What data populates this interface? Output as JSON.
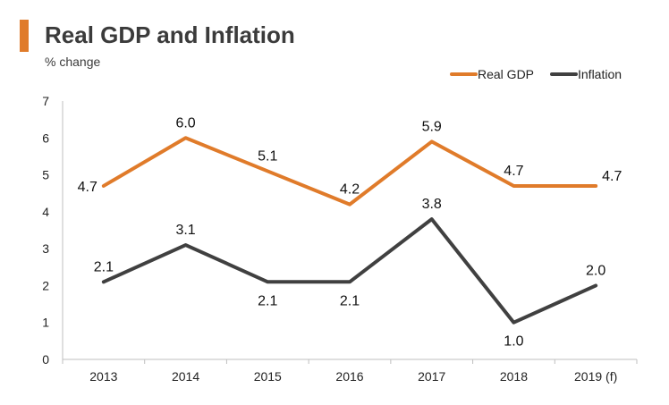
{
  "header": {
    "title": "Real GDP and Inflation",
    "subtitle": "% change",
    "accent_color": "#E07B2A"
  },
  "chart_data": {
    "type": "line",
    "title": "Real GDP and Inflation",
    "ylabel": "% change",
    "xlabel": "",
    "categories": [
      "2013",
      "2014",
      "2015",
      "2016",
      "2017",
      "2018",
      "2019 (f)"
    ],
    "ylim": [
      0,
      7
    ],
    "yticks": [
      "0",
      "1",
      "2",
      "3",
      "4",
      "5",
      "6",
      "7"
    ],
    "grid": false,
    "legend_position": "top-right",
    "series": [
      {
        "name": "Real GDP",
        "color": "#E07B2A",
        "values": [
          4.7,
          6.0,
          5.1,
          4.2,
          5.9,
          4.7,
          4.7
        ],
        "labels": [
          "4.7",
          "6.0",
          "5.1",
          "4.2",
          "5.9",
          "4.7",
          "4.7"
        ],
        "label_side": [
          "left",
          "above",
          "above",
          "above",
          "above",
          "above",
          "right"
        ]
      },
      {
        "name": "Inflation",
        "color": "#404040",
        "values": [
          2.1,
          3.1,
          2.1,
          2.1,
          3.8,
          1.0,
          2.0
        ],
        "labels": [
          "2.1",
          "3.1",
          "2.1",
          "2.1",
          "3.8",
          "1.0",
          "2.0"
        ],
        "label_side": [
          "above",
          "above",
          "below",
          "below",
          "above",
          "below",
          "above"
        ]
      }
    ]
  }
}
